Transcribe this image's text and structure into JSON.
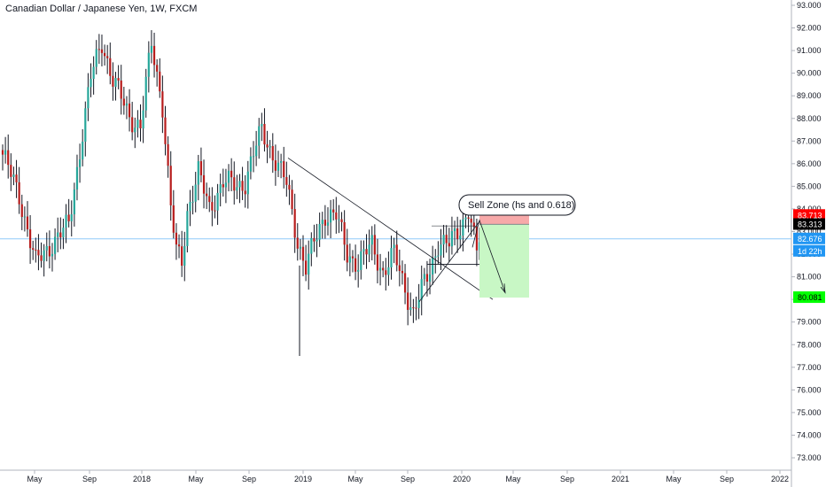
{
  "chart_data": {
    "type": "candlestick",
    "title": "Canadian Dollar / Japanese Yen, 1W, FXCM",
    "y_axis": {
      "side": "right",
      "range": [
        72.6,
        93.2
      ],
      "ticks": [
        "93.000",
        "92.000",
        "91.000",
        "90.000",
        "89.000",
        "88.000",
        "87.000",
        "86.000",
        "85.000",
        "84.000",
        "83.000",
        "82.000",
        "81.000",
        "80.000",
        "79.000",
        "78.000",
        "77.000",
        "76.000",
        "75.000",
        "74.000",
        "73.000"
      ]
    },
    "x_axis": {
      "tick_labels": [
        "May",
        "Sep",
        "2018",
        "May",
        "Sep",
        "2019",
        "May",
        "Sep",
        "2020",
        "May",
        "Sep",
        "2021",
        "May",
        "Sep",
        "2022"
      ]
    },
    "price_labels": {
      "stop_level": {
        "value": "83.713",
        "color": "#ff0000"
      },
      "last_close": {
        "value": "83.313",
        "color": "#000000"
      },
      "current_price": {
        "value": "82.676",
        "color": "#2196f3"
      },
      "countdown": {
        "value": "1d 22h",
        "color": "#2196f3"
      },
      "target_level": {
        "value": "80.081",
        "color": "#00ff00"
      }
    },
    "annotation": {
      "text": "Sell Zone (hs and 0.618)"
    },
    "colors": {
      "up": "#26a69a",
      "down": "#b71c1c",
      "wick": "#131722",
      "current_line": "#90caf9",
      "stop_zone": "#f7a9a9",
      "target_zone": "#c8f7c5"
    },
    "approx_path": [
      {
        "i": 0,
        "p": 86.4
      },
      {
        "i": 6,
        "p": 84.6
      },
      {
        "i": 12,
        "p": 81.6
      },
      {
        "i": 18,
        "p": 82.5
      },
      {
        "i": 24,
        "p": 83.3
      },
      {
        "i": 29,
        "p": 87.4
      },
      {
        "i": 32,
        "p": 89.8
      },
      {
        "i": 36,
        "p": 91.4
      },
      {
        "i": 40,
        "p": 89.7
      },
      {
        "i": 46,
        "p": 88.1
      },
      {
        "i": 50,
        "p": 87.6
      },
      {
        "i": 54,
        "p": 91.3
      },
      {
        "i": 58,
        "p": 88.6
      },
      {
        "i": 61,
        "p": 84.0
      },
      {
        "i": 63,
        "p": 82.1
      },
      {
        "i": 65,
        "p": 81.7
      },
      {
        "i": 67,
        "p": 83.9
      },
      {
        "i": 71,
        "p": 85.6
      },
      {
        "i": 75,
        "p": 84.0
      },
      {
        "i": 80,
        "p": 85.2
      },
      {
        "i": 85,
        "p": 85.0
      },
      {
        "i": 88,
        "p": 85.2
      },
      {
        "i": 91,
        "p": 86.4
      },
      {
        "i": 94,
        "p": 87.5
      },
      {
        "i": 98,
        "p": 86.4
      },
      {
        "i": 103,
        "p": 85.1
      },
      {
        "i": 107,
        "p": 82.6
      },
      {
        "i": 110,
        "p": 81.4
      },
      {
        "i": 113,
        "p": 82.5
      },
      {
        "i": 117,
        "p": 83.8
      },
      {
        "i": 121,
        "p": 83.7
      },
      {
        "i": 125,
        "p": 82.0
      },
      {
        "i": 129,
        "p": 81.6
      },
      {
        "i": 134,
        "p": 82.4
      },
      {
        "i": 138,
        "p": 81.2
      },
      {
        "i": 142,
        "p": 82.0
      },
      {
        "i": 146,
        "p": 80.5
      },
      {
        "i": 149,
        "p": 79.4
      },
      {
        "i": 152,
        "p": 80.4
      },
      {
        "i": 155,
        "p": 81.3
      },
      {
        "i": 158,
        "p": 82.5
      },
      {
        "i": 162,
        "p": 82.4
      },
      {
        "i": 166,
        "p": 83.2
      },
      {
        "i": 169,
        "p": 84.0
      },
      {
        "i": 172,
        "p": 82.0
      },
      {
        "i": 174,
        "p": 83.3
      }
    ]
  }
}
